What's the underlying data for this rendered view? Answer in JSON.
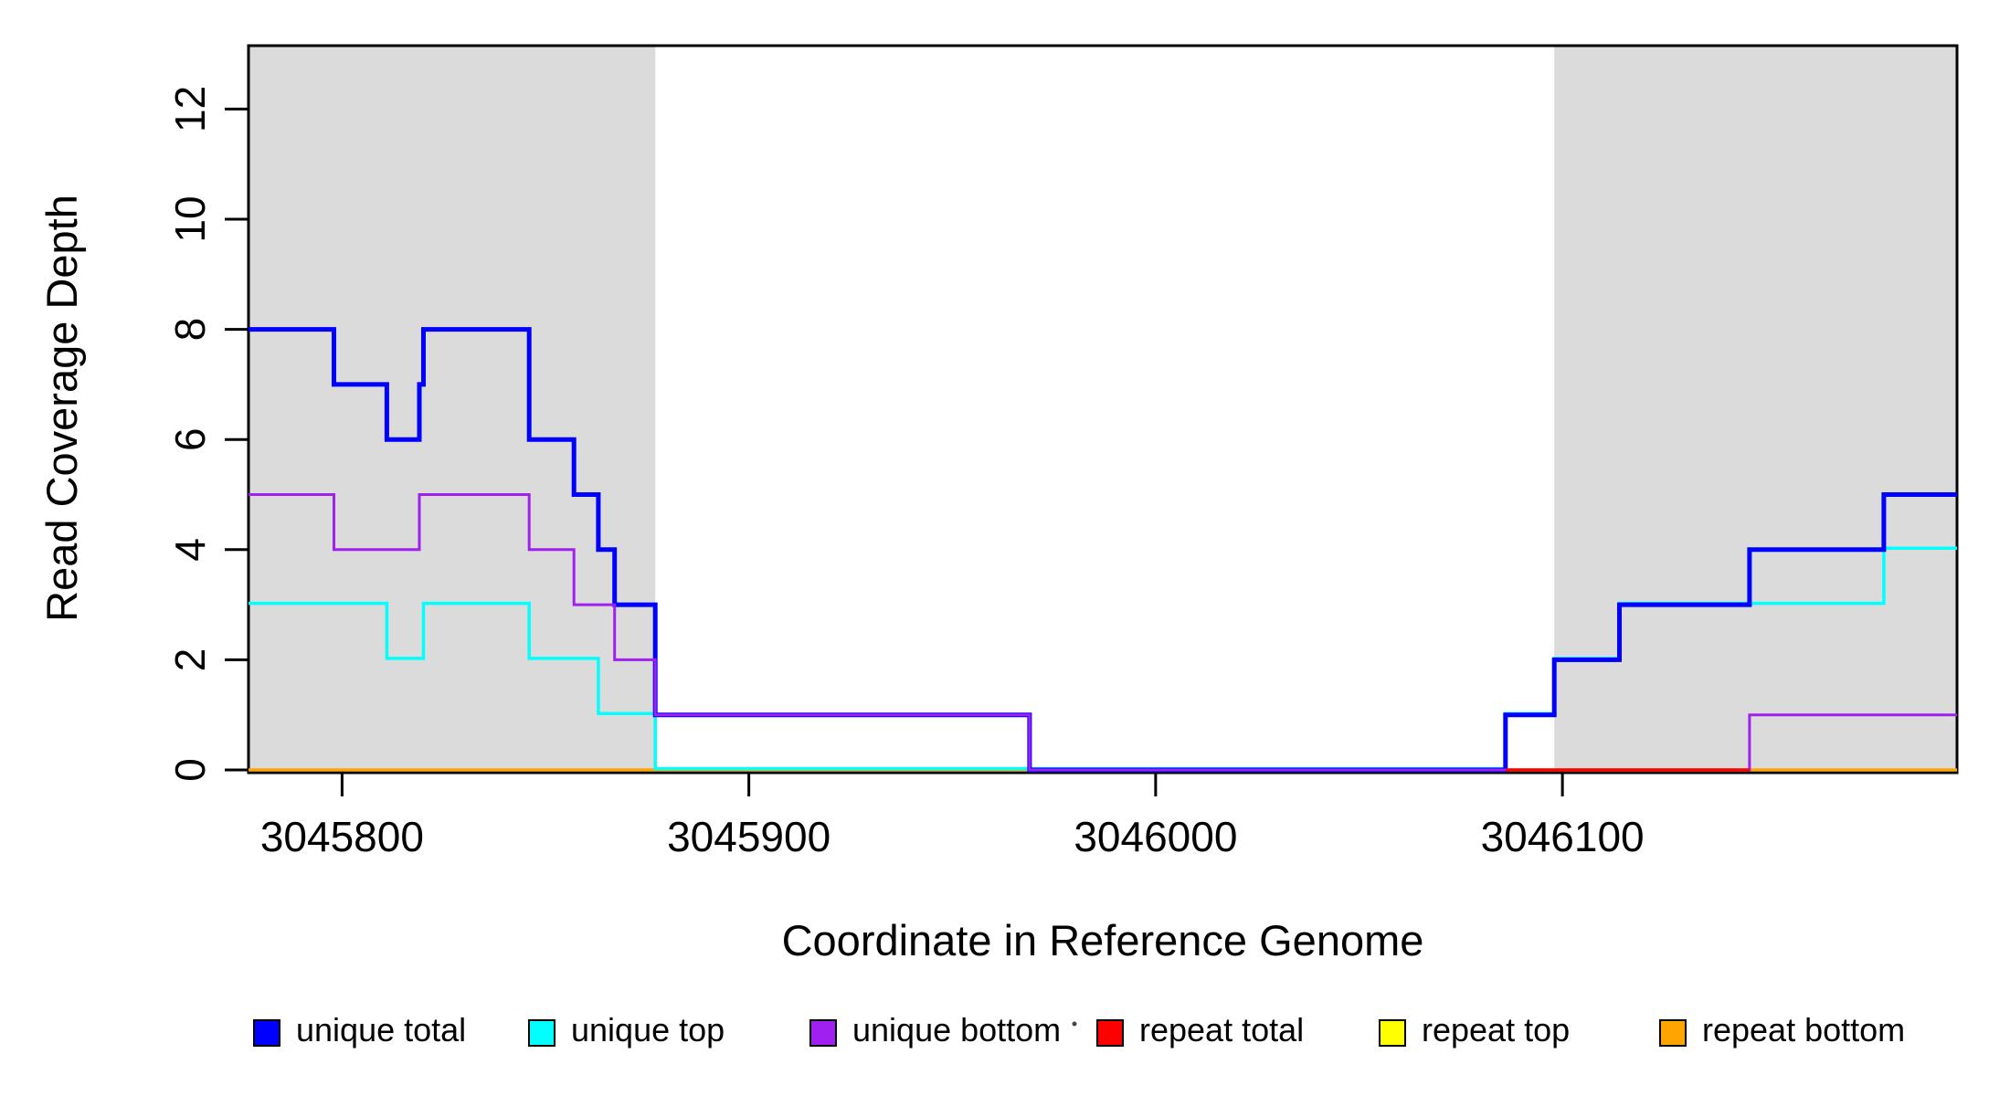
{
  "figure": {
    "background": "#FFFFFF",
    "plot_border_color": "#000000"
  },
  "chart_data": {
    "type": "line",
    "subtype": "step-coverage-plot",
    "title": "",
    "xlabel": "Coordinate in Reference Genome",
    "ylabel": "Read Coverage Depth",
    "xlim": [
      3045777,
      3046197
    ],
    "ylim": [
      0,
      13.2
    ],
    "grid": false,
    "legend_position": "bottom",
    "x_ticks": [
      {
        "value": 3045800,
        "label": "3045800"
      },
      {
        "value": 3045900,
        "label": "3045900"
      },
      {
        "value": 3046000,
        "label": "3046000"
      },
      {
        "value": 3046100,
        "label": "3046100"
      }
    ],
    "y_ticks": [
      {
        "value": 0,
        "label": "0"
      },
      {
        "value": 2,
        "label": "2"
      },
      {
        "value": 4,
        "label": "4"
      },
      {
        "value": 6,
        "label": "6"
      },
      {
        "value": 8,
        "label": "8"
      },
      {
        "value": 10,
        "label": "10"
      },
      {
        "value": 12,
        "label": "12"
      }
    ],
    "shaded_regions": [
      {
        "x0": 3045777,
        "x1": 3045877,
        "color": "#DBDBDB"
      },
      {
        "x0": 3046098,
        "x1": 3046197,
        "color": "#DBDBDB"
      }
    ],
    "series": [
      {
        "name": "repeat top",
        "color": "#FFFF00",
        "width": 3,
        "points": [
          [
            3045777,
            0
          ],
          [
            3046197,
            0
          ]
        ]
      },
      {
        "name": "repeat bottom",
        "color": "#FFA500",
        "width": 3.5,
        "points": [
          [
            3045777,
            0
          ],
          [
            3046197,
            0
          ]
        ]
      },
      {
        "name": "unique top",
        "color": "#00FFFF",
        "width": 3.5,
        "dy": -1.5,
        "points": [
          [
            3045777,
            3
          ],
          [
            3045811,
            3
          ],
          [
            3045811,
            2
          ],
          [
            3045820,
            2
          ],
          [
            3045820,
            3
          ],
          [
            3045846,
            3
          ],
          [
            3045846,
            2
          ],
          [
            3045863,
            2
          ],
          [
            3045863,
            1
          ],
          [
            3045877,
            1
          ],
          [
            3045877,
            0
          ],
          [
            3046086,
            0
          ],
          [
            3046086,
            1
          ],
          [
            3046098,
            1
          ],
          [
            3046098,
            2
          ],
          [
            3046114,
            2
          ],
          [
            3046114,
            3
          ],
          [
            3046179,
            3
          ],
          [
            3046179,
            4
          ],
          [
            3046197,
            4
          ]
        ]
      },
      {
        "name": "unique total",
        "color": "#0000FF",
        "width": 5,
        "points": [
          [
            3045777,
            8
          ],
          [
            3045798,
            8
          ],
          [
            3045798,
            7
          ],
          [
            3045811,
            7
          ],
          [
            3045811,
            6
          ],
          [
            3045819,
            6
          ],
          [
            3045819,
            7
          ],
          [
            3045820,
            7
          ],
          [
            3045820,
            8
          ],
          [
            3045846,
            8
          ],
          [
            3045846,
            6
          ],
          [
            3045857,
            6
          ],
          [
            3045857,
            5
          ],
          [
            3045863,
            5
          ],
          [
            3045863,
            4
          ],
          [
            3045867,
            4
          ],
          [
            3045867,
            3
          ],
          [
            3045877,
            3
          ],
          [
            3045877,
            1
          ],
          [
            3045969,
            1
          ],
          [
            3045969,
            0
          ],
          [
            3046086,
            0
          ],
          [
            3046086,
            1
          ],
          [
            3046098,
            1
          ],
          [
            3046098,
            2
          ],
          [
            3046114,
            2
          ],
          [
            3046114,
            3
          ],
          [
            3046146,
            3
          ],
          [
            3046146,
            4
          ],
          [
            3046179,
            4
          ],
          [
            3046179,
            5
          ],
          [
            3046197,
            5
          ]
        ]
      },
      {
        "name": "unique bottom",
        "color": "#A020F0",
        "width": 3,
        "points": [
          [
            3045777,
            5
          ],
          [
            3045798,
            5
          ],
          [
            3045798,
            4
          ],
          [
            3045819,
            4
          ],
          [
            3045819,
            5
          ],
          [
            3045846,
            5
          ],
          [
            3045846,
            4
          ],
          [
            3045857,
            4
          ],
          [
            3045857,
            3
          ],
          [
            3045867,
            3
          ],
          [
            3045867,
            2
          ],
          [
            3045877,
            2
          ],
          [
            3045877,
            1
          ],
          [
            3045969,
            1
          ],
          [
            3045969,
            0
          ],
          [
            3046146,
            0
          ],
          [
            3046146,
            1
          ],
          [
            3046197,
            1
          ]
        ]
      },
      {
        "name": "repeat total",
        "color": "#FF0000",
        "width": 3.5,
        "points": [
          [
            3046086,
            0
          ],
          [
            3046146,
            0
          ]
        ]
      }
    ],
    "legend": {
      "items": [
        {
          "label": "unique total",
          "color": "#0000FF"
        },
        {
          "label": "unique top",
          "color": "#00FFFF"
        },
        {
          "label": "unique bottom",
          "color": "#A020F0"
        },
        {
          "label": "repeat total",
          "color": "#FF0000"
        },
        {
          "label": "repeat top",
          "color": "#FFFF00"
        },
        {
          "label": "repeat bottom",
          "color": "#FFA500"
        }
      ],
      "stray_mark": "."
    }
  }
}
